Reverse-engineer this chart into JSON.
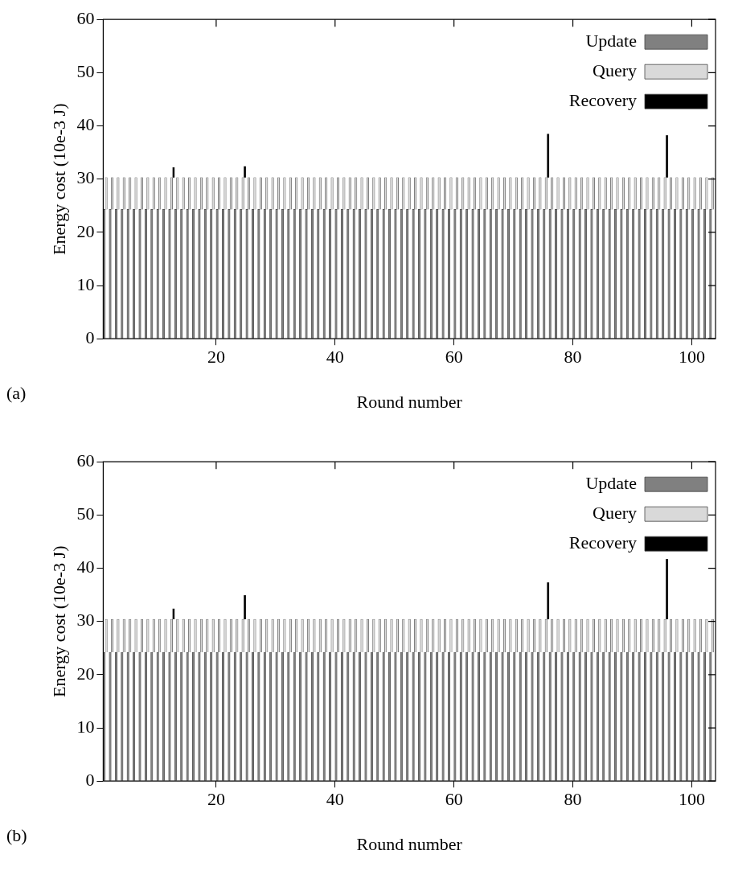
{
  "chart_data": [
    {
      "type": "bar",
      "xlabel": "Round number",
      "ylabel": "Energy cost (10e-3 J)",
      "annotations": [
        "(a)"
      ],
      "stacked": true,
      "legend": "top right",
      "xlim": [
        1,
        104
      ],
      "xticks": [
        20,
        40,
        60,
        80,
        100
      ],
      "ylim": [
        0,
        60
      ],
      "yticks": [
        0,
        10,
        20,
        30,
        40,
        50,
        60
      ],
      "x": [
        1.5,
        2.5,
        3.5,
        4.5,
        5.5,
        6.5,
        7.5,
        8.5,
        9.5,
        10.5,
        11.5,
        12.5,
        13.5,
        14.5,
        15.5,
        16.5,
        17.5,
        18.5,
        19.5,
        20.5,
        21.5,
        22.5,
        23.5,
        24.5,
        25.5,
        26.5,
        27.5,
        28.5,
        29.5,
        30.5,
        31.5,
        32.5,
        33.5,
        34.5,
        35.5,
        36.5,
        37.5,
        38.5,
        39.5,
        40.5,
        41.5,
        42.5,
        43.5,
        44.5,
        45.5,
        46.5,
        47.5,
        48.5,
        49.5,
        50.5,
        51.5,
        52.5,
        53.5,
        54.5,
        55.5,
        56.5,
        57.5,
        58.5,
        59.5,
        60.5,
        61.5,
        62.5,
        63.5,
        64.5,
        65.5,
        66.5,
        67.5,
        68.5,
        69.5,
        70.5,
        71.5,
        72.5,
        73.5,
        74.5,
        75.5,
        76.5,
        77.5,
        78.5,
        79.5,
        80.5,
        81.5,
        82.5,
        83.5,
        84.5,
        85.5,
        86.5,
        87.5,
        88.5,
        89.5,
        90.5,
        91.5,
        92.5,
        93.5,
        94.5,
        95.5,
        96.5,
        97.5,
        98.5,
        99.5,
        100.5,
        101.5,
        102.5,
        103.5
      ],
      "series": [
        {
          "name": "Update",
          "color": "#808080",
          "values": [
            24.3,
            24.3,
            24.3,
            24.3,
            24.3,
            24.3,
            24.3,
            24.3,
            24.3,
            24.3,
            24.3,
            24.3,
            24.3,
            24.3,
            24.3,
            24.3,
            24.3,
            24.3,
            24.3,
            24.3,
            24.3,
            24.3,
            24.3,
            24.3,
            24.3,
            24.3,
            24.3,
            24.3,
            24.3,
            24.3,
            24.3,
            24.3,
            24.3,
            24.3,
            24.3,
            24.3,
            24.3,
            24.3,
            24.3,
            24.3,
            24.3,
            24.3,
            24.3,
            24.3,
            24.3,
            24.3,
            24.3,
            24.3,
            24.3,
            24.3,
            24.3,
            24.3,
            24.3,
            24.3,
            24.3,
            24.3,
            24.3,
            24.3,
            24.3,
            24.3,
            24.3,
            24.3,
            24.3,
            24.3,
            24.3,
            24.3,
            24.3,
            24.3,
            24.3,
            24.3,
            24.3,
            24.3,
            24.3,
            24.3,
            24.3,
            24.3,
            24.3,
            24.3,
            24.3,
            24.3,
            24.3,
            24.3,
            24.3,
            24.3,
            24.3,
            24.3,
            24.3,
            24.3,
            24.3,
            24.3,
            24.3,
            24.3,
            24.3,
            24.3,
            24.3,
            24.3,
            24.3,
            24.3,
            24.3,
            24.3,
            24.3,
            24.3,
            24.3
          ]
        },
        {
          "name": "Query",
          "color": "#d9d9d9",
          "values": [
            6.0,
            6.0,
            6.0,
            6.0,
            6.0,
            6.0,
            6.0,
            6.0,
            6.0,
            6.0,
            6.0,
            6.0,
            6.0,
            6.0,
            6.0,
            6.0,
            6.0,
            6.0,
            6.0,
            6.0,
            6.0,
            6.0,
            6.0,
            6.0,
            6.0,
            6.0,
            6.0,
            6.0,
            6.0,
            6.0,
            6.0,
            6.0,
            6.0,
            6.0,
            6.0,
            6.0,
            6.0,
            6.0,
            6.0,
            6.0,
            6.0,
            6.0,
            6.0,
            6.0,
            6.0,
            6.0,
            6.0,
            6.0,
            6.0,
            6.0,
            6.0,
            6.0,
            6.0,
            6.0,
            6.0,
            6.0,
            6.0,
            6.0,
            6.0,
            6.0,
            6.0,
            6.0,
            6.0,
            6.0,
            6.0,
            6.0,
            6.0,
            6.0,
            6.0,
            6.0,
            6.0,
            6.0,
            6.0,
            6.0,
            6.0,
            6.0,
            6.0,
            6.0,
            6.0,
            6.0,
            6.0,
            6.0,
            6.0,
            6.0,
            6.0,
            6.0,
            6.0,
            6.0,
            6.0,
            6.0,
            6.0,
            6.0,
            6.0,
            6.0,
            6.0,
            6.0,
            6.0,
            6.0,
            6.0,
            6.0,
            6.0,
            6.0,
            6.0
          ]
        },
        {
          "name": "Recovery",
          "color": "#000000",
          "values": [
            null,
            null,
            null,
            null,
            null,
            null,
            null,
            null,
            null,
            null,
            null,
            1.9,
            null,
            null,
            null,
            null,
            null,
            null,
            null,
            null,
            null,
            null,
            null,
            2.1,
            null,
            null,
            null,
            null,
            null,
            null,
            null,
            null,
            null,
            null,
            null,
            null,
            null,
            null,
            null,
            null,
            null,
            null,
            null,
            null,
            null,
            null,
            null,
            null,
            null,
            null,
            null,
            null,
            null,
            null,
            null,
            null,
            null,
            null,
            null,
            null,
            null,
            null,
            null,
            null,
            null,
            null,
            null,
            null,
            null,
            null,
            null,
            null,
            null,
            null,
            8.2,
            null,
            null,
            null,
            null,
            null,
            null,
            null,
            null,
            null,
            null,
            null,
            null,
            null,
            null,
            null,
            null,
            null,
            null,
            null,
            7.9,
            null,
            null,
            null,
            null,
            null,
            null,
            null,
            null
          ]
        }
      ]
    },
    {
      "type": "bar",
      "xlabel": "Round number",
      "ylabel": "Energy cost (10e-3 J)",
      "annotations": [
        "(b)"
      ],
      "stacked": true,
      "legend": "top right",
      "xlim": [
        1,
        104
      ],
      "xticks": [
        20,
        40,
        60,
        80,
        100
      ],
      "ylim": [
        0,
        60
      ],
      "yticks": [
        0,
        10,
        20,
        30,
        40,
        50,
        60
      ],
      "x": [
        1.5,
        2.5,
        3.5,
        4.5,
        5.5,
        6.5,
        7.5,
        8.5,
        9.5,
        10.5,
        11.5,
        12.5,
        13.5,
        14.5,
        15.5,
        16.5,
        17.5,
        18.5,
        19.5,
        20.5,
        21.5,
        22.5,
        23.5,
        24.5,
        25.5,
        26.5,
        27.5,
        28.5,
        29.5,
        30.5,
        31.5,
        32.5,
        33.5,
        34.5,
        35.5,
        36.5,
        37.5,
        38.5,
        39.5,
        40.5,
        41.5,
        42.5,
        43.5,
        44.5,
        45.5,
        46.5,
        47.5,
        48.5,
        49.5,
        50.5,
        51.5,
        52.5,
        53.5,
        54.5,
        55.5,
        56.5,
        57.5,
        58.5,
        59.5,
        60.5,
        61.5,
        62.5,
        63.5,
        64.5,
        65.5,
        66.5,
        67.5,
        68.5,
        69.5,
        70.5,
        71.5,
        72.5,
        73.5,
        74.5,
        75.5,
        76.5,
        77.5,
        78.5,
        79.5,
        80.5,
        81.5,
        82.5,
        83.5,
        84.5,
        85.5,
        86.5,
        87.5,
        88.5,
        89.5,
        90.5,
        91.5,
        92.5,
        93.5,
        94.5,
        95.5,
        96.5,
        97.5,
        98.5,
        99.5,
        100.5,
        101.5,
        102.5,
        103.5
      ],
      "series": [
        {
          "name": "Update",
          "color": "#808080",
          "values": [
            24.2,
            24.2,
            24.2,
            24.2,
            24.2,
            24.2,
            24.2,
            24.2,
            24.2,
            24.2,
            24.2,
            24.2,
            24.2,
            24.2,
            24.2,
            24.2,
            24.2,
            24.2,
            24.2,
            24.2,
            24.2,
            24.2,
            24.2,
            24.2,
            24.2,
            24.2,
            24.2,
            24.2,
            24.2,
            24.2,
            24.2,
            24.2,
            24.2,
            24.2,
            24.2,
            24.2,
            24.2,
            24.2,
            24.2,
            24.2,
            24.2,
            24.2,
            24.2,
            24.2,
            24.2,
            24.2,
            24.2,
            24.2,
            24.2,
            24.2,
            24.2,
            24.2,
            24.2,
            24.2,
            24.2,
            24.2,
            24.2,
            24.2,
            24.2,
            24.2,
            24.2,
            24.2,
            24.2,
            24.2,
            24.2,
            24.2,
            24.2,
            24.2,
            24.2,
            24.2,
            24.2,
            24.2,
            24.2,
            24.2,
            24.2,
            24.2,
            24.2,
            24.2,
            24.2,
            24.2,
            24.2,
            24.2,
            24.2,
            24.2,
            24.2,
            24.2,
            24.2,
            24.2,
            24.2,
            24.2,
            24.2,
            24.2,
            24.2,
            24.2,
            24.2,
            24.2,
            24.2,
            24.2,
            24.2,
            24.2,
            24.2,
            24.2,
            24.2
          ]
        },
        {
          "name": "Query",
          "color": "#d9d9d9",
          "values": [
            6.2,
            6.2,
            6.2,
            6.2,
            6.2,
            6.2,
            6.2,
            6.2,
            6.2,
            6.2,
            6.2,
            6.2,
            6.2,
            6.2,
            6.2,
            6.2,
            6.2,
            6.2,
            6.2,
            6.2,
            6.2,
            6.2,
            6.2,
            6.2,
            6.2,
            6.2,
            6.2,
            6.2,
            6.2,
            6.2,
            6.2,
            6.2,
            6.2,
            6.2,
            6.2,
            6.2,
            6.2,
            6.2,
            6.2,
            6.2,
            6.2,
            6.2,
            6.2,
            6.2,
            6.2,
            6.2,
            6.2,
            6.2,
            6.2,
            6.2,
            6.2,
            6.2,
            6.2,
            6.2,
            6.2,
            6.2,
            6.2,
            6.2,
            6.2,
            6.2,
            6.2,
            6.2,
            6.2,
            6.2,
            6.2,
            6.2,
            6.2,
            6.2,
            6.2,
            6.2,
            6.2,
            6.2,
            6.2,
            6.2,
            6.2,
            6.2,
            6.2,
            6.2,
            6.2,
            6.2,
            6.2,
            6.2,
            6.2,
            6.2,
            6.2,
            6.2,
            6.2,
            6.2,
            6.2,
            6.2,
            6.2,
            6.2,
            6.2,
            6.2,
            6.2,
            6.2,
            6.2,
            6.2,
            6.2,
            6.2,
            6.2,
            6.2,
            6.2
          ]
        },
        {
          "name": "Recovery",
          "color": "#000000",
          "values": [
            null,
            null,
            null,
            null,
            null,
            null,
            null,
            null,
            null,
            null,
            null,
            2.0,
            null,
            null,
            null,
            null,
            null,
            null,
            null,
            null,
            null,
            null,
            null,
            4.5,
            null,
            null,
            null,
            null,
            null,
            null,
            null,
            null,
            null,
            null,
            null,
            null,
            null,
            null,
            null,
            null,
            null,
            null,
            null,
            null,
            null,
            null,
            null,
            null,
            null,
            null,
            null,
            null,
            null,
            null,
            null,
            null,
            null,
            null,
            null,
            null,
            null,
            null,
            null,
            null,
            null,
            null,
            null,
            null,
            null,
            null,
            null,
            null,
            null,
            null,
            6.9,
            null,
            null,
            null,
            null,
            null,
            null,
            null,
            null,
            null,
            null,
            null,
            null,
            null,
            null,
            null,
            null,
            null,
            null,
            null,
            11.3,
            null,
            null,
            null,
            null,
            null,
            null,
            null,
            null
          ]
        }
      ]
    }
  ]
}
